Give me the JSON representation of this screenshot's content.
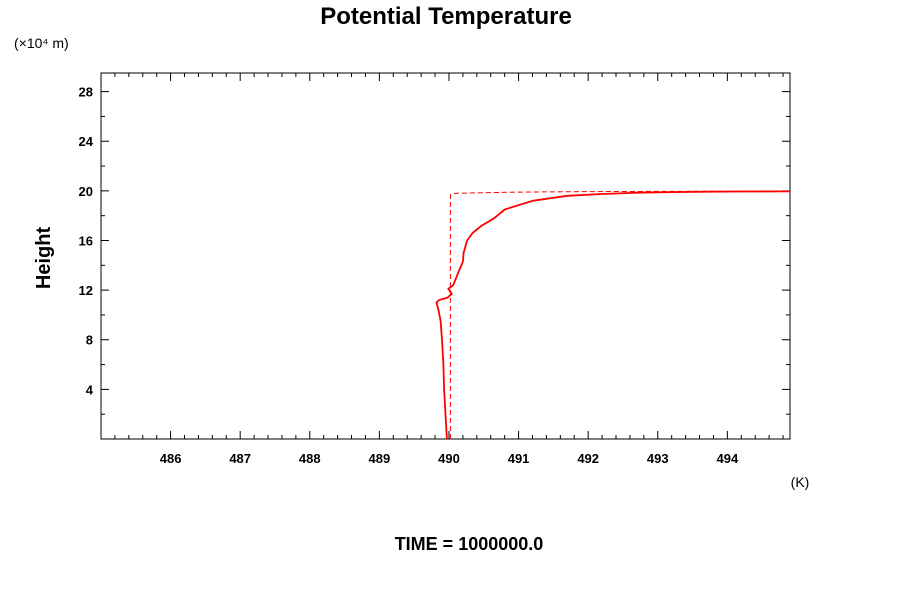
{
  "chart_data": {
    "type": "line",
    "title": "Potential Temperature",
    "ylabel": "Height",
    "y_unit_label": "(×10⁴ m)",
    "x_unit_label": "(K)",
    "footer": "TIME = 1000000.0",
    "xlim": [
      485.0,
      494.9
    ],
    "ylim": [
      0.0,
      29.5
    ],
    "x_ticks": [
      486,
      487,
      488,
      489,
      490,
      491,
      492,
      493,
      494
    ],
    "x_tick_labels": [
      "486",
      "487",
      "488",
      "489",
      "490",
      "491",
      "492",
      "493",
      "494"
    ],
    "y_ticks": [
      4,
      8,
      12,
      16,
      20,
      24,
      28
    ],
    "y_tick_labels": [
      "4",
      "8",
      "12",
      "16",
      "20",
      "24",
      "28"
    ],
    "grid": false,
    "legend": "none",
    "series": [
      {
        "style": "solid",
        "color": "#ff0000",
        "x": [
          489.97,
          489.95,
          489.93,
          489.92,
          489.9,
          489.88,
          489.85,
          489.82,
          489.86,
          489.98,
          490.04,
          489.99,
          490.06,
          490.09,
          490.14,
          490.2,
          490.21,
          490.26,
          490.34,
          490.47,
          490.65,
          490.8,
          491.2,
          491.7,
          492.2,
          492.7,
          493.2,
          493.7,
          494.2,
          494.9
        ],
        "y": [
          0.0,
          2.0,
          4.0,
          6.0,
          8.0,
          9.5,
          10.4,
          11.0,
          11.2,
          11.4,
          11.7,
          12.1,
          12.4,
          12.8,
          13.5,
          14.3,
          15.0,
          16.0,
          16.6,
          17.2,
          17.8,
          18.5,
          19.2,
          19.6,
          19.75,
          19.85,
          19.9,
          19.93,
          19.95,
          19.96
        ]
      },
      {
        "style": "dashed",
        "color": "#ff0000",
        "x": [
          490.02,
          490.02,
          490.1,
          490.5,
          491.0,
          492.0,
          493.0,
          494.0,
          494.9
        ],
        "y": [
          0.0,
          19.7,
          19.8,
          19.85,
          19.9,
          19.94,
          19.96,
          19.97,
          19.98
        ]
      }
    ]
  }
}
